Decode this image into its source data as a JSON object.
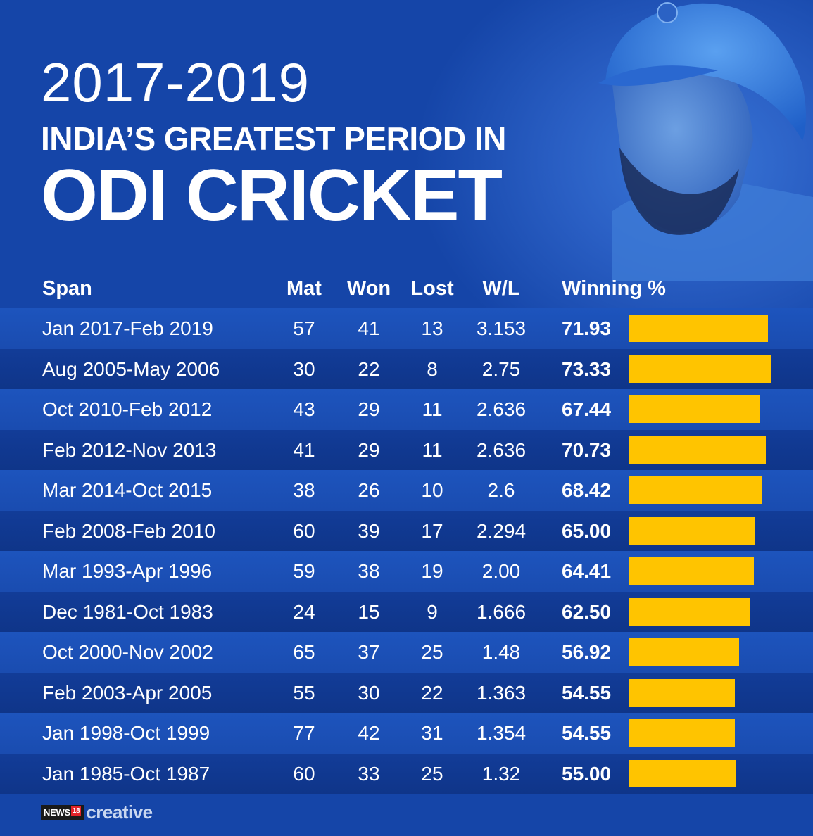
{
  "title": {
    "line1": "2017-2019",
    "line2": "INDIA’S GREATEST PERIOD IN",
    "line3": "ODI CRICKET"
  },
  "colors": {
    "background": "#1545a8",
    "bar": "#ffc400",
    "text": "#ffffff"
  },
  "chart_data": {
    "type": "table",
    "columns": [
      "Span",
      "Mat",
      "Won",
      "Lost",
      "W/L",
      "Winning %"
    ],
    "rows": [
      {
        "span": "Jan 2017-Feb 2019",
        "mat": "57",
        "won": "41",
        "lost": "13",
        "wl": "3.153",
        "pct": "71.93"
      },
      {
        "span": "Aug 2005-May 2006",
        "mat": "30",
        "won": "22",
        "lost": "8",
        "wl": "2.75",
        "pct": "73.33"
      },
      {
        "span": "Oct 2010-Feb 2012",
        "mat": "43",
        "won": "29",
        "lost": "11",
        "wl": "2.636",
        "pct": "67.44"
      },
      {
        "span": "Feb 2012-Nov 2013",
        "mat": "41",
        "won": "29",
        "lost": "11",
        "wl": "2.636",
        "pct": "70.73"
      },
      {
        "span": "Mar 2014-Oct 2015",
        "mat": "38",
        "won": "26",
        "lost": "10",
        "wl": "2.6",
        "pct": "68.42"
      },
      {
        "span": "Feb 2008-Feb 2010",
        "mat": "60",
        "won": "39",
        "lost": "17",
        "wl": "2.294",
        "pct": "65.00"
      },
      {
        "span": "Mar 1993-Apr 1996",
        "mat": "59",
        "won": "38",
        "lost": "19",
        "wl": "2.00",
        "pct": "64.41"
      },
      {
        "span": "Dec 1981-Oct 1983",
        "mat": "24",
        "won": "15",
        "lost": "9",
        "wl": "1.666",
        "pct": "62.50"
      },
      {
        "span": "Oct 2000-Nov 2002",
        "mat": "65",
        "won": "37",
        "lost": "25",
        "wl": "1.48",
        "pct": "56.92"
      },
      {
        "span": "Feb 2003-Apr 2005",
        "mat": "55",
        "won": "30",
        "lost": "22",
        "wl": "1.363",
        "pct": "54.55"
      },
      {
        "span": "Jan 1998-Oct 1999",
        "mat": "77",
        "won": "42",
        "lost": "31",
        "wl": "1.354",
        "pct": "54.55"
      },
      {
        "span": "Jan 1985-Oct 1987",
        "mat": "60",
        "won": "33",
        "lost": "25",
        "wl": "1.32",
        "pct": "55.00"
      }
    ]
  },
  "footer": {
    "news": "NEWS",
    "num": "18",
    "creative": "creative"
  }
}
